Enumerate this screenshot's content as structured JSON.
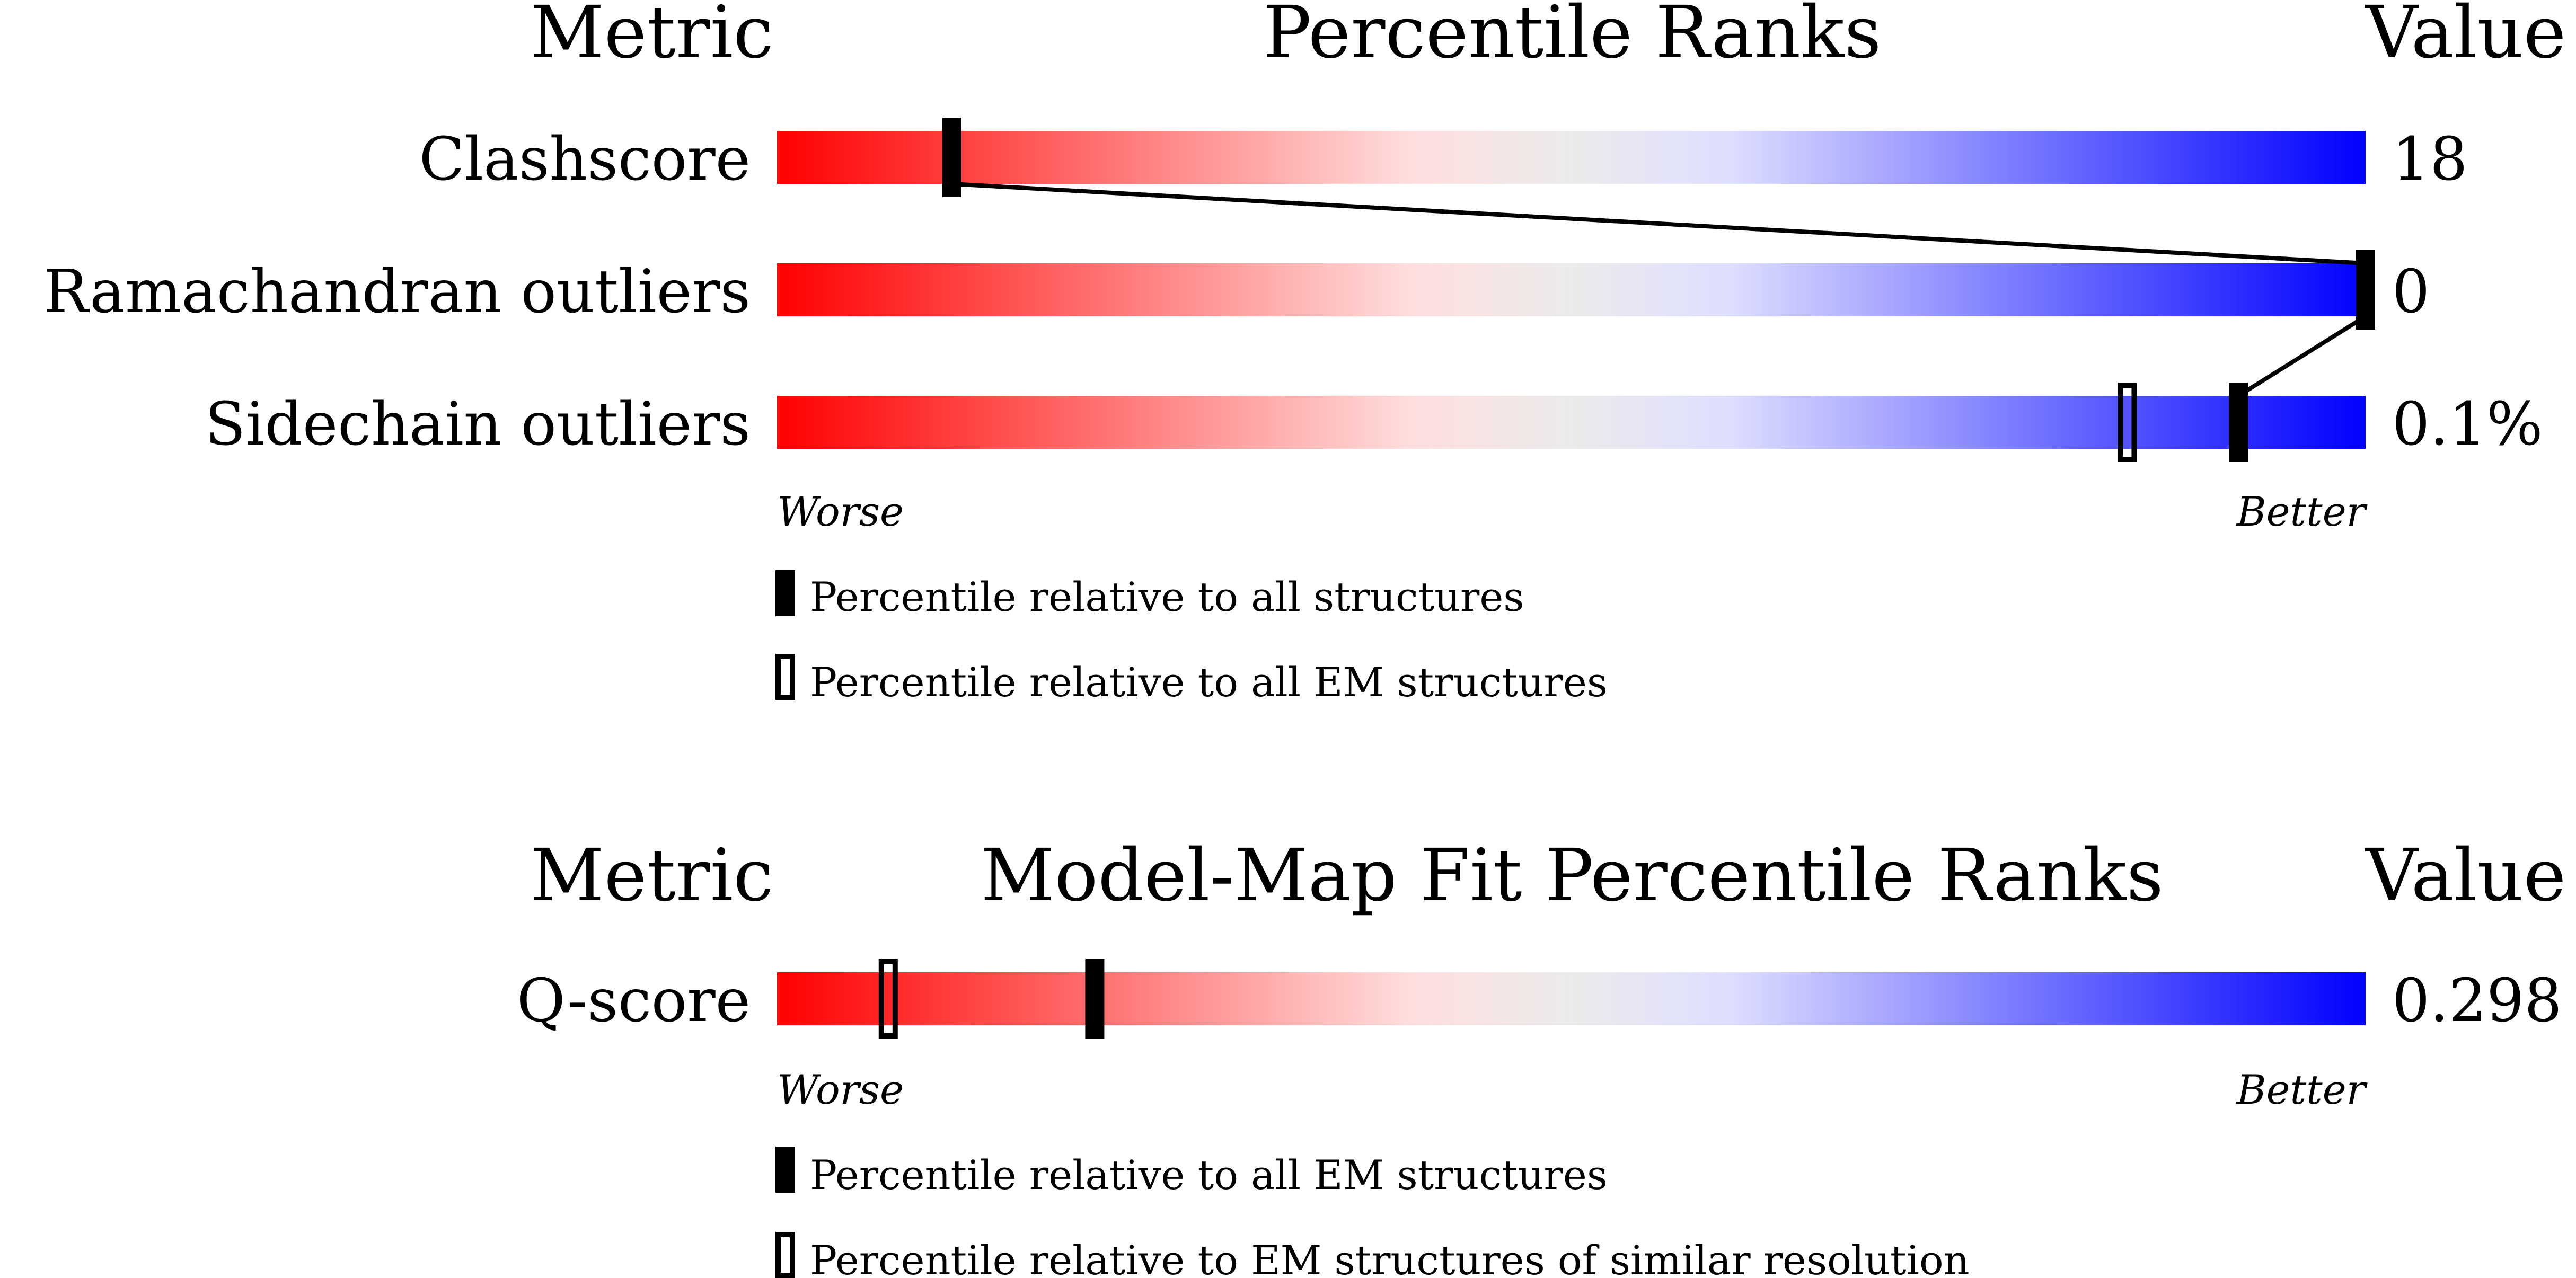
{
  "chart_data": [
    {
      "type": "percentile-bar",
      "header": {
        "metric": "Metric",
        "title": "Percentile Ranks",
        "value": "Value"
      },
      "scale": {
        "min_label": "Worse",
        "max_label": "Better",
        "range": [
          0,
          100
        ]
      },
      "gradient_colors": [
        "#ff0000",
        "#ffdede",
        "#ebebeb",
        "#dedeff",
        "#0000ff"
      ],
      "rows": [
        {
          "metric": "Clashscore",
          "value": "18",
          "percentile_all": 11,
          "percentile_em": null
        },
        {
          "metric": "Ramachandran outliers",
          "value": "0",
          "percentile_all": 100,
          "percentile_em": null
        },
        {
          "metric": "Sidechain outliers",
          "value": "0.1%",
          "percentile_all": 92,
          "percentile_em": 85
        }
      ],
      "legend": [
        {
          "marker": "filled",
          "label": "Percentile relative to all structures"
        },
        {
          "marker": "open",
          "label": "Percentile relative to all EM structures"
        }
      ]
    },
    {
      "type": "percentile-bar",
      "header": {
        "metric": "Metric",
        "title": "Model-Map Fit Percentile Ranks",
        "value": "Value"
      },
      "scale": {
        "min_label": "Worse",
        "max_label": "Better",
        "range": [
          0,
          100
        ]
      },
      "rows": [
        {
          "metric": "Q-score",
          "value": "0.298",
          "percentile_all": 20,
          "percentile_em": 7
        }
      ],
      "legend": [
        {
          "marker": "filled",
          "label": "Percentile relative to all EM structures"
        },
        {
          "marker": "open",
          "label": "Percentile relative to EM structures of similar resolution"
        }
      ]
    }
  ]
}
